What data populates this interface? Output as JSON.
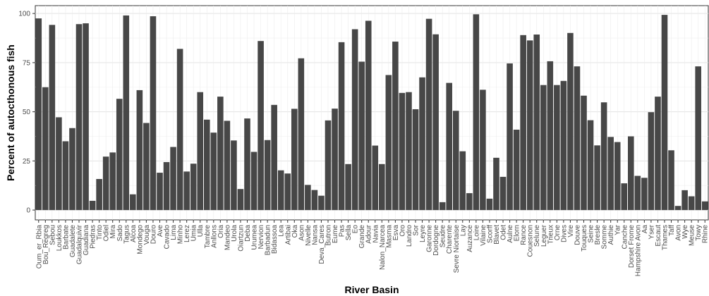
{
  "chart_data": {
    "type": "bar",
    "title": "",
    "xlabel": "River Basin",
    "ylabel": "Percent of autocthonous fish",
    "ylim": [
      -5,
      104
    ],
    "yticks": [
      0,
      25,
      50,
      75,
      100
    ],
    "grid": true,
    "bar_color": "#474747",
    "categories": [
      "Oum_er_Rbia",
      "Bou_Regreg",
      "Sebou",
      "Loukkos",
      "Barbate",
      "Guadalete",
      "Guadalquivir",
      "Guadiana",
      "Piedras",
      "Tinto",
      "Odiel",
      "Mira",
      "Sado",
      "Tagus",
      "Alcoa",
      "Mondego",
      "Vouga",
      "Douro",
      "Ave",
      "Cavado",
      "Lima",
      "Minho",
      "Lerez",
      "Umia",
      "Ulla",
      "Tambre",
      "Anllons",
      "Oria",
      "Mandeo",
      "Urola",
      "Oiartzun",
      "Deba",
      "Urumea",
      "Nervion",
      "Barbadun",
      "Bidassoa",
      "Lea",
      "Artibai",
      "Oka",
      "Ason",
      "Nivelle",
      "Nansa",
      "Deva_Cares",
      "Butron",
      "Eume",
      "Pas",
      "Sella",
      "Eo",
      "Grande",
      "Adour",
      "Navia",
      "Nalon_Narcea",
      "Masma",
      "Esva",
      "Oro",
      "Landro",
      "Sor",
      "Leyre",
      "Garonne",
      "Dordogne",
      "Seudre",
      "Charente",
      "Sevre Niortaise",
      "Lay",
      "Auzance",
      "Loire",
      "Vilaine",
      "Scorff",
      "Blavet",
      "Odet",
      "Aulne",
      "Elorn",
      "Rance",
      "Couesnon",
      "Selune",
      "Leguer",
      "Trieux",
      "Orne",
      "Dives",
      "Vire",
      "Douve",
      "Touques",
      "Seine",
      "Bresle",
      "Somme",
      "Authie",
      "Yar",
      "Canche",
      "Dorset Frome",
      "Hampshire Avon",
      "Aa",
      "Yser",
      "Escaut",
      "Thames",
      "Taff",
      "Avon",
      "Wye",
      "Meuse",
      "Towy",
      "Rhine"
    ],
    "values": [
      97.5,
      62.5,
      94.2,
      47.2,
      35,
      41.7,
      94.6,
      95,
      4.7,
      15.8,
      27.2,
      29.3,
      56.6,
      99,
      8,
      61,
      44.3,
      98.6,
      19,
      24.4,
      32.1,
      82,
      19.6,
      23.6,
      60,
      46,
      39.4,
      57.7,
      45.4,
      35.4,
      10.7,
      46.6,
      29.6,
      86,
      35.6,
      53.5,
      20.2,
      18.6,
      51.5,
      77.2,
      12.8,
      10.2,
      7.3,
      45.6,
      51.6,
      85.4,
      23.4,
      92,
      75.5,
      96.3,
      32.8,
      23.4,
      68.7,
      85.7,
      59.6,
      60,
      51.3,
      67.5,
      97.3,
      89.4,
      4,
      64.7,
      50.5,
      29.9,
      8.6,
      99.6,
      61.2,
      5.8,
      26.6,
      16.9,
      74.6,
      40.9,
      89,
      86.3,
      89.3,
      63.6,
      75.7,
      63.6,
      65.7,
      90.1,
      73.1,
      58.2,
      45.7,
      32.9,
      54.8,
      37.2,
      34.6,
      13.6,
      37.5,
      17.4,
      16.4,
      49.8,
      57.7,
      99.3,
      30.4,
      2.1,
      10.1,
      7,
      73.1,
      4.4
    ]
  }
}
